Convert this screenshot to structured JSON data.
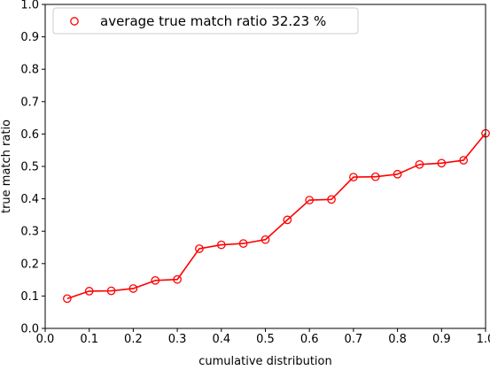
{
  "chart_data": {
    "type": "line",
    "title": "",
    "xlabel": "cumulative distribution",
    "ylabel": "true match ratio",
    "xlim": [
      0.0,
      1.0
    ],
    "ylim": [
      0.0,
      1.0
    ],
    "x_ticks": [
      "0.0",
      "0.1",
      "0.2",
      "0.3",
      "0.4",
      "0.5",
      "0.6",
      "0.7",
      "0.8",
      "0.9",
      "1.0"
    ],
    "y_ticks": [
      "0.0",
      "0.1",
      "0.2",
      "0.3",
      "0.4",
      "0.5",
      "0.6",
      "0.7",
      "0.8",
      "0.9",
      "1.0"
    ],
    "grid": false,
    "legend_position": "top-left",
    "series": [
      {
        "name": "average true match ratio 32.23 %",
        "color": "#ff0000",
        "marker": "open-circle",
        "x": [
          0.05,
          0.1,
          0.15,
          0.2,
          0.25,
          0.3,
          0.35,
          0.4,
          0.45,
          0.5,
          0.55,
          0.6,
          0.65,
          0.7,
          0.75,
          0.8,
          0.85,
          0.9,
          0.95,
          1.0
        ],
        "y": [
          0.092,
          0.115,
          0.116,
          0.123,
          0.148,
          0.151,
          0.246,
          0.258,
          0.262,
          0.274,
          0.335,
          0.396,
          0.398,
          0.467,
          0.468,
          0.476,
          0.506,
          0.51,
          0.519,
          0.602
        ]
      }
    ]
  }
}
